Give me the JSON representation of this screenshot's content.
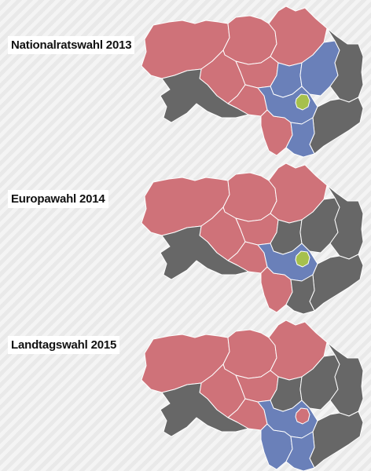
{
  "legend_colors": {
    "red": "#cf7279",
    "blue": "#6a80b9",
    "gray": "#676767",
    "green": "#a6c04d"
  },
  "maps": [
    {
      "title": "Nationalratswahl 2013",
      "regions": {
        "north-west": "red",
        "north-center": "red",
        "north-east": "red",
        "center-west": "red",
        "center": "red",
        "center-south": "red",
        "south-center": "red",
        "west-enclave": "gray",
        "east-a": "blue",
        "east-b": "blue",
        "middle-blue": "blue",
        "east-far": "gray",
        "south-east": "gray",
        "south": "blue",
        "graz": "green"
      }
    },
    {
      "title": "Europawahl 2014",
      "regions": {
        "north-west": "red",
        "north-center": "red",
        "north-east": "red",
        "center-west": "red",
        "center": "red",
        "center-south": "red",
        "south-center": "red",
        "west-enclave": "gray",
        "east-a": "gray",
        "east-b": "gray",
        "middle-blue": "blue",
        "east-far": "gray",
        "south-east": "gray",
        "south": "gray",
        "graz": "green"
      }
    },
    {
      "title": "Landtagswahl 2015",
      "regions": {
        "north-west": "red",
        "north-center": "red",
        "north-east": "red",
        "center-west": "red",
        "center": "red",
        "center-south": "red",
        "south-center": "blue",
        "west-enclave": "gray",
        "east-a": "gray",
        "east-b": "gray",
        "middle-blue": "blue",
        "east-far": "gray",
        "south-east": "gray",
        "south": "blue",
        "graz": "red"
      }
    }
  ]
}
